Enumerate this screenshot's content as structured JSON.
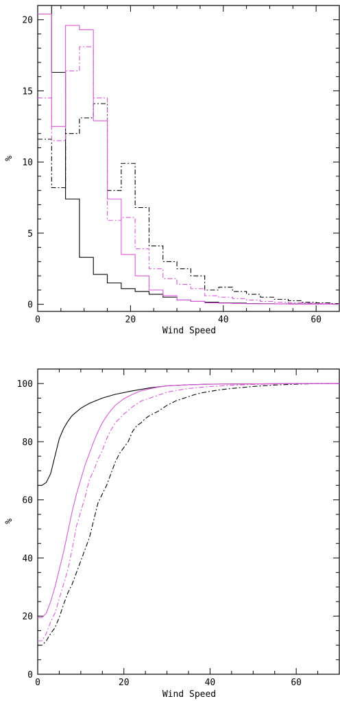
{
  "chart_data": [
    {
      "type": "line",
      "step": true,
      "xlabel": "Wind Speed",
      "ylabel": "%",
      "xlim": [
        0,
        65
      ],
      "ylim": [
        -0.5,
        21
      ],
      "xticks": [
        0,
        20,
        40,
        60
      ],
      "yticks": [
        0,
        5,
        10,
        15,
        20
      ],
      "x_minor_step": 5,
      "y_minor_step": 1,
      "bin_edges": [
        0,
        3,
        6,
        9,
        12,
        15,
        18,
        21,
        24,
        27,
        30,
        33,
        36,
        39,
        42,
        45,
        48,
        51,
        54,
        57,
        60,
        63,
        65
      ],
      "series": [
        {
          "color": "#000000",
          "dash": "solid",
          "values": [
            21.0,
            16.3,
            7.4,
            3.3,
            2.1,
            1.5,
            1.1,
            0.9,
            0.7,
            0.5,
            0.3,
            0.2,
            0.15,
            0.1,
            0.08,
            0.05,
            0.04,
            0.03,
            0.02,
            0.02,
            0.01,
            0.01
          ]
        },
        {
          "color": "#000000",
          "dash": "dashdot",
          "values": [
            11.6,
            8.2,
            12.0,
            13.1,
            14.1,
            8.0,
            9.9,
            6.8,
            4.1,
            3.0,
            2.5,
            2.0,
            1.0,
            1.2,
            0.9,
            0.7,
            0.5,
            0.35,
            0.25,
            0.15,
            0.1,
            0.05
          ]
        },
        {
          "color": "#dd55dd",
          "dash": "solid",
          "values": [
            20.4,
            12.5,
            19.6,
            19.3,
            12.9,
            7.4,
            3.5,
            2.0,
            1.0,
            0.6,
            0.3,
            0.2,
            0.1,
            0.08,
            0.05,
            0.04,
            0.03,
            0.02,
            0.01,
            0.01,
            0.01,
            0.0
          ]
        },
        {
          "color": "#dd55dd",
          "dash": "dashdot",
          "values": [
            14.5,
            11.5,
            16.4,
            18.1,
            14.5,
            5.9,
            6.1,
            3.9,
            2.5,
            1.8,
            1.4,
            1.1,
            0.6,
            0.5,
            0.4,
            0.3,
            0.2,
            0.15,
            0.1,
            0.08,
            0.05,
            0.03
          ]
        }
      ]
    },
    {
      "type": "line",
      "xlabel": "Wind Speed",
      "ylabel": "%",
      "xlim": [
        0,
        70
      ],
      "ylim": [
        0,
        105
      ],
      "xticks": [
        0,
        20,
        40,
        60
      ],
      "yticks": [
        0,
        20,
        40,
        60,
        80,
        100
      ],
      "x_minor_step": 5,
      "y_minor_step": 5,
      "series": [
        {
          "color": "#000000",
          "dash": "solid",
          "x": [
            0,
            1,
            2,
            3,
            4,
            5,
            6,
            7,
            8,
            10,
            12,
            15,
            18,
            22,
            26,
            30,
            35,
            40,
            50,
            60,
            70
          ],
          "y": [
            65,
            65,
            66,
            69,
            75,
            81,
            84.5,
            87,
            89,
            91.5,
            93.2,
            95,
            96.3,
            97.5,
            98.5,
            99.2,
            99.6,
            99.8,
            99.9,
            100,
            100
          ]
        },
        {
          "color": "#000000",
          "dash": "dashdot",
          "x": [
            0,
            1,
            2,
            3,
            4,
            5,
            6,
            7,
            8,
            9,
            10,
            11,
            12,
            13,
            14,
            15,
            16,
            17,
            18,
            19,
            20,
            21,
            22,
            23,
            24,
            25,
            26,
            28,
            30,
            32,
            34,
            36,
            38,
            40,
            42,
            45,
            50,
            55,
            60,
            65,
            70
          ],
          "y": [
            10,
            10,
            11.5,
            14,
            16,
            19.5,
            24,
            28,
            31,
            35,
            39,
            43,
            47,
            53,
            59,
            62,
            65,
            69,
            73,
            76,
            78,
            80,
            83.5,
            85.5,
            86.5,
            88,
            89,
            90.5,
            92.5,
            94,
            95,
            96,
            96.8,
            97.3,
            97.8,
            98.3,
            99,
            99.5,
            99.8,
            100,
            100
          ]
        },
        {
          "color": "#dd55dd",
          "dash": "solid",
          "x": [
            0,
            1,
            2,
            3,
            4,
            5,
            6,
            7,
            8,
            9,
            10,
            11,
            12,
            13,
            14,
            15,
            16,
            17,
            18,
            20,
            22,
            24,
            26,
            28,
            30,
            35,
            40,
            50,
            60,
            70
          ],
          "y": [
            19.5,
            19.5,
            21,
            25,
            30,
            36,
            42,
            49,
            56,
            62,
            67,
            72,
            76,
            80,
            83.5,
            86.5,
            88.8,
            90.8,
            92.5,
            94.8,
            96.3,
            97.5,
            98.2,
            98.8,
            99.2,
            99.6,
            99.8,
            99.9,
            100,
            100
          ]
        },
        {
          "color": "#dd55dd",
          "dash": "dashdot",
          "x": [
            0,
            1,
            2,
            3,
            4,
            5,
            6,
            7,
            8,
            9,
            10,
            11,
            12,
            13,
            14,
            15,
            16,
            17,
            18,
            19,
            20,
            22,
            24,
            26,
            28,
            30,
            32,
            35,
            40,
            45,
            50,
            55,
            60,
            70
          ],
          "y": [
            11.5,
            11.5,
            14,
            18,
            21,
            26,
            31,
            36,
            43,
            51,
            56,
            61,
            67,
            70,
            74,
            77,
            81,
            84,
            86.5,
            88,
            89.5,
            92,
            94,
            95,
            96,
            97,
            97.6,
            98.3,
            99,
            99.4,
            99.7,
            99.85,
            100,
            100
          ]
        }
      ]
    }
  ]
}
